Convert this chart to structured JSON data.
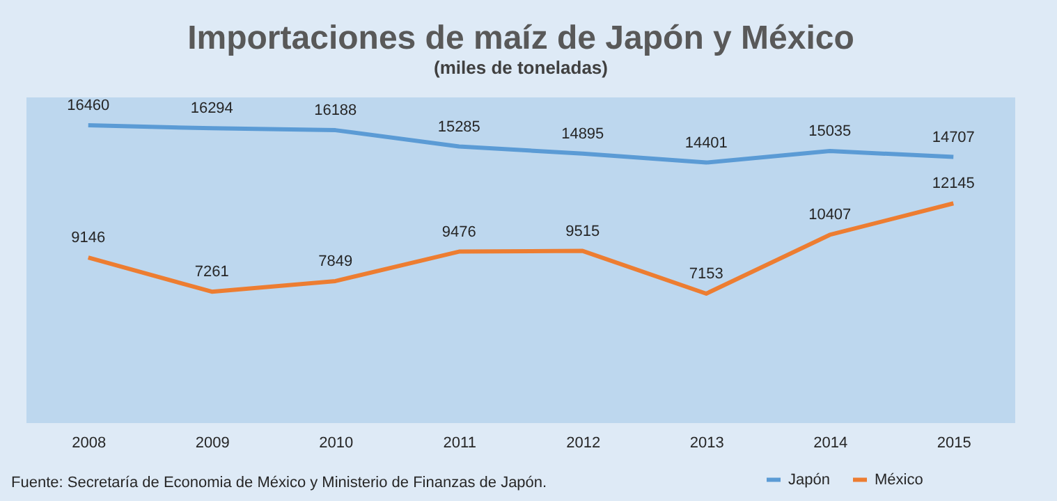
{
  "chart_data": {
    "type": "line",
    "title": "Importaciones de maíz de Japón y México",
    "subtitle": "(miles de toneladas)",
    "categories": [
      "2008",
      "2009",
      "2010",
      "2011",
      "2012",
      "2013",
      "2014",
      "2015"
    ],
    "series": [
      {
        "name": "Japón",
        "color": "#5b9bd5",
        "values": [
          16460,
          16294,
          16188,
          15285,
          14895,
          14401,
          15035,
          14707
        ]
      },
      {
        "name": "México",
        "color": "#ed7d31",
        "values": [
          9146,
          7261,
          7849,
          9476,
          9515,
          7153,
          10407,
          12145
        ]
      }
    ],
    "ylim": [
      0,
      18000
    ],
    "tick_labels": "x",
    "data_labels": true,
    "grid": false,
    "marker": "none",
    "legend": "bottom right",
    "annotations": [
      "Fuente: Secretaría de Economia de México y Ministerio de Finanzas de Japón."
    ]
  }
}
